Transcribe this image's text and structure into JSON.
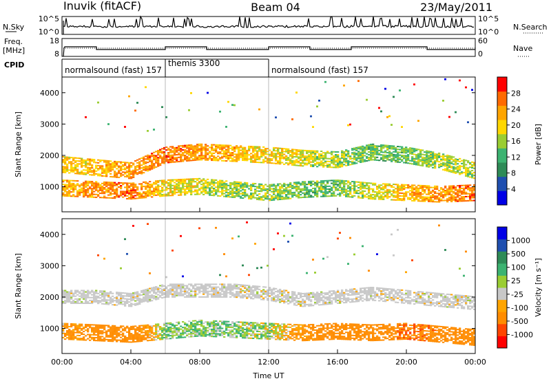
{
  "header": {
    "station": "Inuvik (fitACF)",
    "beam": "Beam 04",
    "date": "23/May/2011"
  },
  "strips": {
    "nsky_label": "N.Sky",
    "nsky_ticks": [
      "10^5",
      "10^0"
    ],
    "nsearch_label": "N.Search",
    "nsearch_ticks": [
      "10^5",
      "10^0"
    ],
    "freq_label": "Freq.",
    "freq_unit": "[MHz]",
    "freq_ticks": [
      "18",
      "8"
    ],
    "nave_label": "Nave",
    "nave_ticks": [
      "60",
      "0"
    ],
    "cpid_label": "CPID",
    "cpid_segments": [
      {
        "label": "normalsound (fast) 157",
        "start": 0,
        "end": 6
      },
      {
        "label": "themis 3300",
        "start": 6,
        "end": 12
      },
      {
        "label": "normalsound (fast) 157",
        "start": 12,
        "end": 24
      }
    ]
  },
  "colors": {
    "power_scale": [
      "#0000e6",
      "#1f4fb0",
      "#2e8b57",
      "#3cb371",
      "#9acd32",
      "#ffd700",
      "#ffa500",
      "#ff6a00",
      "#ff0000"
    ],
    "velocity_scale": [
      "#ff0000",
      "#ff4500",
      "#ff8c00",
      "#ffa500",
      "#c8c8c8",
      "#9acd32",
      "#3cb371",
      "#2e8b57",
      "#1f4fb0",
      "#0000e6"
    ]
  },
  "chart_data": [
    {
      "type": "heatmap",
      "ylabel": "Slant Range [km]",
      "xlabel": "Time UT",
      "x_ticks": [
        "00:00",
        "04:00",
        "08:00",
        "12:00",
        "16:00",
        "20:00",
        "00:00"
      ],
      "y_ticks": [
        "1000",
        "2000",
        "3000",
        "4000"
      ],
      "xlim": [
        0,
        24
      ],
      "ylim": [
        200,
        4500
      ],
      "colorbar": {
        "label": "Power [dB]",
        "ticks": [
          "28",
          "24",
          "20",
          "16",
          "12",
          "8",
          "4"
        ]
      },
      "bands": [
        {
          "name": "lower",
          "center_km": [
            950,
            900,
            850,
            950,
            1000,
            900,
            800,
            900,
            950,
            850,
            800,
            750,
            800
          ],
          "value_db": [
            22,
            24,
            26,
            20,
            18,
            16,
            16,
            14,
            14,
            18,
            22,
            24,
            26
          ]
        },
        {
          "name": "upper",
          "center_km": [
            1700,
            1600,
            1500,
            2000,
            2100,
            2050,
            2000,
            1900,
            1850,
            2100,
            2000,
            1800,
            1500
          ],
          "value_db": [
            20,
            22,
            24,
            26,
            24,
            22,
            20,
            18,
            16,
            14,
            14,
            16,
            18
          ]
        }
      ],
      "band_times_h": [
        0,
        2,
        4,
        6,
        8,
        10,
        12,
        14,
        16,
        18,
        20,
        22,
        24
      ]
    },
    {
      "type": "heatmap",
      "ylabel": "Slant Range [km]",
      "xlabel": "Time UT",
      "x_ticks": [
        "00:00",
        "04:00",
        "08:00",
        "12:00",
        "16:00",
        "20:00",
        "00:00"
      ],
      "y_ticks": [
        "1000",
        "2000",
        "3000",
        "4000"
      ],
      "xlim": [
        0,
        24
      ],
      "ylim": [
        200,
        4500
      ],
      "colorbar": {
        "label": "Velocity [m s⁻¹]",
        "ticks": [
          "1000",
          "500",
          "100",
          "25",
          "-25",
          "-100",
          "-500",
          "-1000"
        ]
      },
      "bands": [
        {
          "name": "ground-scatter",
          "center_km": [
            2000,
            2000,
            1900,
            2200,
            2200,
            2200,
            2100,
            1900,
            2000,
            2100,
            2000,
            1900,
            1800
          ],
          "value_ms": [
            0,
            0,
            0,
            0,
            0,
            0,
            0,
            0,
            0,
            0,
            0,
            0,
            0
          ]
        },
        {
          "name": "lower",
          "center_km": [
            900,
            850,
            800,
            900,
            1000,
            950,
            900,
            850,
            900,
            850,
            900,
            800,
            700
          ],
          "value_ms": [
            -100,
            -200,
            -300,
            80,
            100,
            60,
            50,
            -150,
            -300,
            -200,
            -500,
            -400,
            -300
          ]
        }
      ],
      "band_times_h": [
        0,
        2,
        4,
        6,
        8,
        10,
        12,
        14,
        16,
        18,
        20,
        22,
        24
      ]
    }
  ]
}
